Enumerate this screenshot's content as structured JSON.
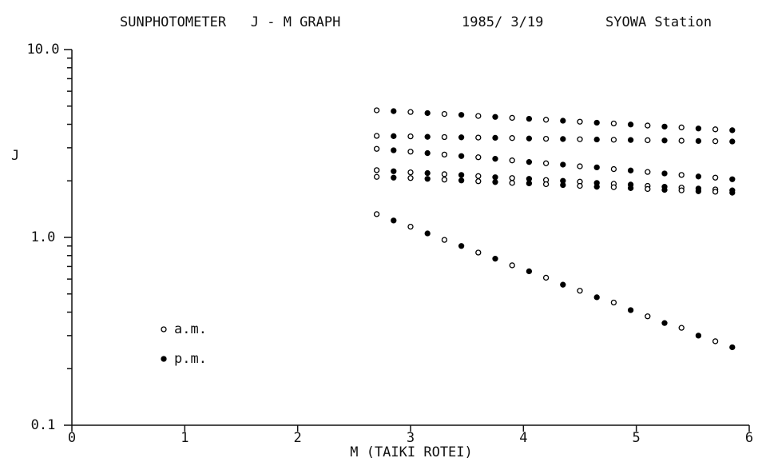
{
  "chart_data": {
    "type": "scatter",
    "title": "SUNPHOTOMETER   J - M GRAPH",
    "subtitle": [
      "1985/ 3/19",
      "SYOWA Station"
    ],
    "xlabel": "M (TAIKI ROTEI)",
    "ylabel": "J",
    "log_y": true,
    "xlim": [
      0,
      6
    ],
    "xticks": [
      0,
      1,
      2,
      3,
      4,
      5,
      6
    ],
    "ylim": [
      0.1,
      10
    ],
    "yticks": [
      0.1,
      {
        "value": 1,
        "label": "1.0"
      },
      {
        "value": 10,
        "label": "10.0"
      }
    ],
    "yminorticks": [
      0.2,
      0.3,
      0.4,
      0.5,
      0.6,
      0.7,
      0.8,
      0.9,
      2,
      3,
      4,
      5,
      6,
      7,
      8,
      9
    ],
    "legend": "bottom-left",
    "series": [
      {
        "name": "a.m.",
        "marker": "open",
        "color": "#000000",
        "x": [
          2.7,
          3.0,
          3.3,
          3.6,
          3.9,
          4.2,
          4.5,
          4.8,
          5.1,
          5.4,
          5.7
        ],
        "values": [
          [
            4.75,
            4.65,
            4.54,
            4.43,
            4.33,
            4.23,
            4.13,
            4.04,
            3.94,
            3.85,
            3.76
          ],
          [
            3.47,
            3.45,
            3.42,
            3.4,
            3.38,
            3.35,
            3.33,
            3.31,
            3.29,
            3.27,
            3.25
          ],
          [
            2.96,
            2.86,
            2.76,
            2.67,
            2.57,
            2.48,
            2.39,
            2.31,
            2.23,
            2.15,
            2.08
          ],
          [
            2.28,
            2.22,
            2.17,
            2.12,
            2.07,
            2.02,
            1.98,
            1.93,
            1.88,
            1.84,
            1.8
          ],
          [
            2.1,
            2.07,
            2.03,
            1.99,
            1.95,
            1.92,
            1.88,
            1.85,
            1.81,
            1.78,
            1.75
          ],
          [
            1.33,
            1.14,
            0.97,
            0.83,
            0.71,
            0.61,
            0.52,
            0.45,
            0.38,
            0.33,
            0.28
          ]
        ]
      },
      {
        "name": "p.m.",
        "marker": "filled",
        "color": "#000000",
        "x": [
          2.85,
          3.15,
          3.45,
          3.75,
          4.05,
          4.35,
          4.65,
          4.95,
          5.25,
          5.55,
          5.85
        ],
        "values": [
          [
            4.7,
            4.59,
            4.49,
            4.38,
            4.28,
            4.18,
            4.08,
            3.99,
            3.89,
            3.8,
            3.72
          ],
          [
            3.46,
            3.43,
            3.41,
            3.39,
            3.36,
            3.34,
            3.32,
            3.3,
            3.28,
            3.26,
            3.24
          ],
          [
            2.91,
            2.81,
            2.71,
            2.62,
            2.52,
            2.44,
            2.36,
            2.27,
            2.19,
            2.11,
            2.04
          ],
          [
            2.25,
            2.2,
            2.15,
            2.09,
            2.05,
            2.0,
            1.95,
            1.91,
            1.86,
            1.82,
            1.78
          ],
          [
            2.08,
            2.05,
            2.01,
            1.97,
            1.94,
            1.9,
            1.86,
            1.83,
            1.79,
            1.76,
            1.73
          ],
          [
            1.23,
            1.05,
            0.9,
            0.77,
            0.66,
            0.56,
            0.48,
            0.41,
            0.35,
            0.3,
            0.26
          ]
        ]
      }
    ]
  }
}
